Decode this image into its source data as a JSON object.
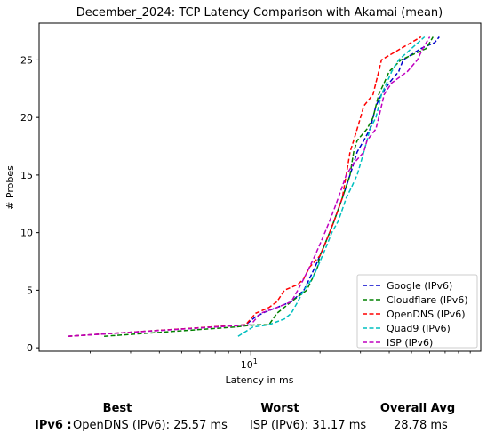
{
  "chart_data": {
    "type": "line",
    "title": "December_2024: TCP Latency Comparison with Akamai (mean)",
    "xlabel": "Latency in ms",
    "ylabel": "# Probes",
    "x_scale": "log",
    "xlim": [
      1.2,
      100
    ],
    "ylim": [
      -0.3,
      28.2
    ],
    "x_major_ticks": [
      {
        "value": 10,
        "label": "10^1"
      }
    ],
    "y_ticks": [
      0,
      5,
      10,
      15,
      20,
      25
    ],
    "grid": false,
    "legend_position": "lower-right",
    "series": [
      {
        "name": "Google (IPv6)",
        "color": "#0000cc",
        "points": [
          [
            1.6,
            1
          ],
          [
            9.5,
            2
          ],
          [
            10.5,
            2.7
          ],
          [
            11.5,
            3.1
          ],
          [
            13,
            3.5
          ],
          [
            15,
            4
          ],
          [
            17,
            5
          ],
          [
            18,
            6
          ],
          [
            19,
            7
          ],
          [
            20,
            8
          ],
          [
            21,
            9
          ],
          [
            22,
            10
          ],
          [
            23,
            11
          ],
          [
            24,
            12
          ],
          [
            25,
            13
          ],
          [
            26,
            14
          ],
          [
            27,
            15
          ],
          [
            28,
            16
          ],
          [
            29,
            17
          ],
          [
            31,
            18
          ],
          [
            33,
            19
          ],
          [
            34,
            20
          ],
          [
            35,
            21
          ],
          [
            37,
            22
          ],
          [
            40,
            23
          ],
          [
            44,
            24
          ],
          [
            46,
            25
          ],
          [
            55,
            26
          ],
          [
            63,
            26.5
          ],
          [
            66,
            27
          ]
        ]
      },
      {
        "name": "Cloudflare (IPv6)",
        "color": "#008000",
        "points": [
          [
            2.3,
            1
          ],
          [
            8.5,
            1.8
          ],
          [
            10.5,
            2
          ],
          [
            12,
            2
          ],
          [
            13,
            3
          ],
          [
            15,
            4
          ],
          [
            17.5,
            5
          ],
          [
            18.5,
            6
          ],
          [
            19.5,
            7
          ],
          [
            20,
            8
          ],
          [
            21,
            9
          ],
          [
            22,
            10
          ],
          [
            23,
            11
          ],
          [
            24,
            12
          ],
          [
            25,
            13
          ],
          [
            26,
            14
          ],
          [
            27,
            15
          ],
          [
            27.5,
            16
          ],
          [
            28,
            17
          ],
          [
            29,
            18
          ],
          [
            32,
            19
          ],
          [
            34,
            20
          ],
          [
            35,
            21
          ],
          [
            36,
            22
          ],
          [
            38,
            23
          ],
          [
            40,
            24
          ],
          [
            45,
            25
          ],
          [
            58,
            26
          ],
          [
            62,
            27
          ]
        ]
      },
      {
        "name": "OpenDNS (IPv6)",
        "color": "#ff0000",
        "points": [
          [
            1.6,
            1
          ],
          [
            9.5,
            2
          ],
          [
            10.5,
            3
          ],
          [
            12,
            3.5
          ],
          [
            13,
            4
          ],
          [
            14,
            5
          ],
          [
            16,
            5.5
          ],
          [
            17,
            6
          ],
          [
            18,
            7
          ],
          [
            20,
            8
          ],
          [
            21,
            9
          ],
          [
            22,
            10
          ],
          [
            23,
            11
          ],
          [
            24,
            12
          ],
          [
            25,
            13
          ],
          [
            25.5,
            14
          ],
          [
            26,
            15
          ],
          [
            26.5,
            16
          ],
          [
            27,
            17
          ],
          [
            28,
            18
          ],
          [
            29,
            19
          ],
          [
            30,
            20
          ],
          [
            31,
            21
          ],
          [
            34,
            22
          ],
          [
            35,
            23
          ],
          [
            36,
            24
          ],
          [
            37,
            25
          ],
          [
            45,
            26
          ],
          [
            55,
            27
          ]
        ]
      },
      {
        "name": "Quad9 (IPv6)",
        "color": "#00bfbf",
        "points": [
          [
            8.8,
            1
          ],
          [
            10.2,
            1.8
          ],
          [
            12,
            2
          ],
          [
            14,
            2.5
          ],
          [
            15,
            3
          ],
          [
            16,
            4
          ],
          [
            17,
            5
          ],
          [
            18.5,
            6
          ],
          [
            19.5,
            7
          ],
          [
            20.5,
            8
          ],
          [
            21.5,
            9
          ],
          [
            22.5,
            10
          ],
          [
            24,
            11
          ],
          [
            25,
            12
          ],
          [
            26,
            13
          ],
          [
            27.5,
            14
          ],
          [
            29,
            15
          ],
          [
            30,
            16
          ],
          [
            31,
            17
          ],
          [
            32,
            18
          ],
          [
            33,
            19
          ],
          [
            35,
            20
          ],
          [
            36,
            21
          ],
          [
            37,
            22
          ],
          [
            39,
            23
          ],
          [
            41,
            24
          ],
          [
            44,
            25
          ],
          [
            50,
            26
          ],
          [
            57,
            27
          ]
        ]
      },
      {
        "name": "ISP (IPv6)",
        "color": "#bf00bf",
        "points": [
          [
            1.6,
            1
          ],
          [
            10,
            2
          ],
          [
            11,
            3
          ],
          [
            13,
            3.5
          ],
          [
            15,
            4
          ],
          [
            16,
            5
          ],
          [
            17,
            6
          ],
          [
            18,
            7
          ],
          [
            19,
            8
          ],
          [
            20,
            9
          ],
          [
            21,
            10
          ],
          [
            22,
            11
          ],
          [
            23,
            12
          ],
          [
            24,
            13
          ],
          [
            25,
            14
          ],
          [
            26,
            15
          ],
          [
            28,
            16
          ],
          [
            31,
            17
          ],
          [
            32,
            18
          ],
          [
            35,
            19
          ],
          [
            36,
            20
          ],
          [
            37,
            21
          ],
          [
            38,
            22
          ],
          [
            41,
            23
          ],
          [
            48,
            24
          ],
          [
            53,
            25
          ],
          [
            56,
            26
          ],
          [
            60,
            27
          ]
        ]
      }
    ]
  },
  "summary": {
    "best_header": "Best",
    "worst_header": "Worst",
    "avg_header": "Overall Avg",
    "row_label": "IPv6 :",
    "best_value": "OpenDNS (IPv6): 25.57 ms",
    "worst_value": "ISP (IPv6): 31.17 ms",
    "avg_value": "28.78 ms"
  }
}
